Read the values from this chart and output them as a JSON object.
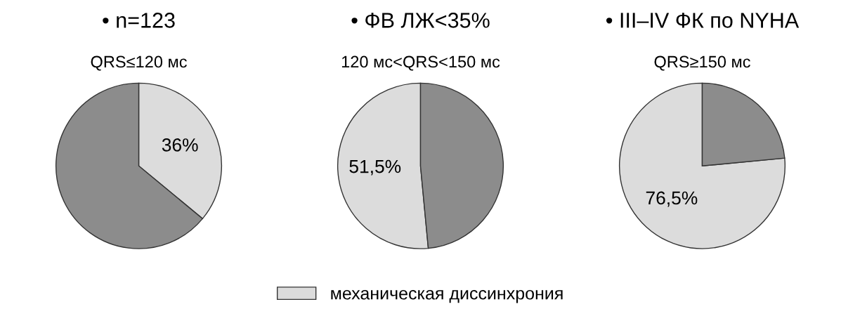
{
  "chart_data": [
    {
      "type": "pie",
      "title": "• n=123",
      "subtitle": "QRS≤120 мс",
      "categories": [
        null,
        null
      ],
      "values": [
        36,
        64
      ],
      "colors": [
        "#dcdcdc",
        "#8c8c8c"
      ],
      "value_labels": [
        "36%",
        null
      ]
    },
    {
      "type": "pie",
      "title": "• ФВ ЛЖ<35%",
      "subtitle": "120 мс<QRS<150 мс",
      "categories": [
        "механическая диссинхрония",
        null
      ],
      "values": [
        51.5,
        48.5
      ],
      "colors": [
        "#dcdcdc",
        "#8c8c8c"
      ],
      "value_labels": [
        "51,5%",
        null
      ],
      "legend": "bottom"
    },
    {
      "type": "pie",
      "title": "• III–IV ФК по NYHA",
      "subtitle": "QRS≥150 мс",
      "categories": [
        null,
        null
      ],
      "values": [
        76.5,
        23.5
      ],
      "colors": [
        "#dcdcdc",
        "#8c8c8c"
      ],
      "value_labels": [
        "76,5%",
        null
      ]
    }
  ]
}
